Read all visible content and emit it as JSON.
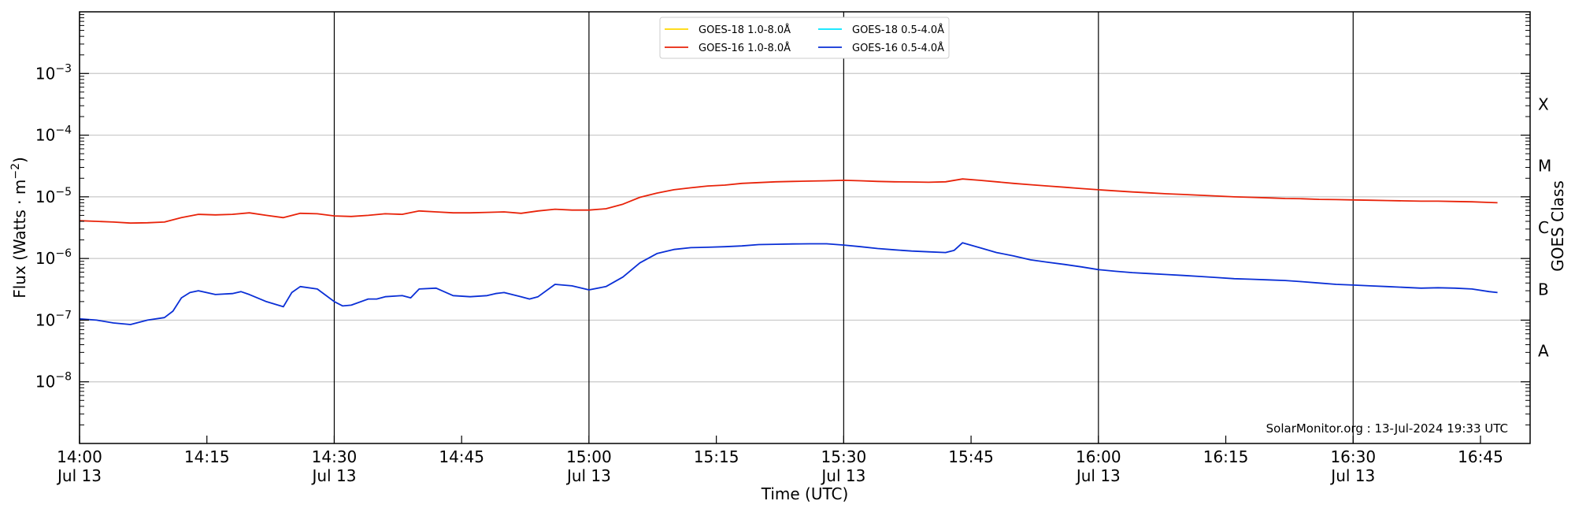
{
  "chart_data": {
    "type": "line",
    "title": "",
    "xlabel": "Time (UTC)",
    "ylabel": "Flux (Watts · m",
    "ylabel_sup": "−2",
    "ylabel_close": ")",
    "right_label": "GOES Class",
    "y_scale": "log",
    "ylim": [
      1e-09,
      0.01
    ],
    "xlim": [
      "14:00",
      "16:47"
    ],
    "grid": "horizontal at decades, vertical lines every 30 minutes",
    "legend_position": "top-center",
    "credit": "SolarMonitor.org : 13-Jul-2024 19:33 UTC",
    "y_ticks": [
      {
        "value": 0.001,
        "base": "10",
        "exp": "−3"
      },
      {
        "value": 0.0001,
        "base": "10",
        "exp": "−4"
      },
      {
        "value": 1e-05,
        "base": "10",
        "exp": "−5"
      },
      {
        "value": 1e-06,
        "base": "10",
        "exp": "−6"
      },
      {
        "value": 1e-07,
        "base": "10",
        "exp": "−7"
      },
      {
        "value": 1e-08,
        "base": "10",
        "exp": "−8"
      }
    ],
    "x_ticks": [
      {
        "time": "14:00",
        "line1": "14:00",
        "line2": "Jul 13"
      },
      {
        "time": "14:15",
        "line1": "14:15",
        "line2": ""
      },
      {
        "time": "14:30",
        "line1": "14:30",
        "line2": "Jul 13"
      },
      {
        "time": "14:45",
        "line1": "14:45",
        "line2": ""
      },
      {
        "time": "15:00",
        "line1": "15:00",
        "line2": "Jul 13"
      },
      {
        "time": "15:15",
        "line1": "15:15",
        "line2": ""
      },
      {
        "time": "15:30",
        "line1": "15:30",
        "line2": "Jul 13"
      },
      {
        "time": "15:45",
        "line1": "15:45",
        "line2": ""
      },
      {
        "time": "16:00",
        "line1": "16:00",
        "line2": "Jul 13"
      },
      {
        "time": "16:15",
        "line1": "16:15",
        "line2": ""
      },
      {
        "time": "16:30",
        "line1": "16:30",
        "line2": "Jul 13"
      },
      {
        "time": "16:45",
        "line1": "16:45",
        "line2": ""
      }
    ],
    "vertical_lines": [
      "14:00",
      "14:30",
      "15:00",
      "15:30",
      "16:00",
      "16:30"
    ],
    "goes_classes": [
      {
        "label": "X",
        "value": 0.000316
      },
      {
        "label": "M",
        "value": 3.16e-05
      },
      {
        "label": "C",
        "value": 3.16e-06
      },
      {
        "label": "B",
        "value": 3.16e-07
      },
      {
        "label": "A",
        "value": 3.16e-08
      }
    ],
    "legend": [
      {
        "label": "GOES-18 1.0-8.0Å",
        "color": "#ffd700"
      },
      {
        "label": "GOES-18 0.5-4.0Å",
        "color": "#00e5ff"
      },
      {
        "label": "GOES-16 1.0-8.0Å",
        "color": "#e8230a"
      },
      {
        "label": "GOES-16 0.5-4.0Å",
        "color": "#0a2fd6"
      }
    ],
    "series": [
      {
        "name": "GOES-16 1.0-8.0Å",
        "color": "#e8230a",
        "x": [
          "14:00",
          "14:02",
          "14:04",
          "14:06",
          "14:08",
          "14:10",
          "14:12",
          "14:14",
          "14:16",
          "14:18",
          "14:20",
          "14:22",
          "14:24",
          "14:26",
          "14:28",
          "14:30",
          "14:32",
          "14:34",
          "14:36",
          "14:38",
          "14:40",
          "14:42",
          "14:44",
          "14:46",
          "14:48",
          "14:50",
          "14:52",
          "14:54",
          "14:56",
          "14:58",
          "15:00",
          "15:02",
          "15:04",
          "15:06",
          "15:08",
          "15:10",
          "15:12",
          "15:14",
          "15:16",
          "15:18",
          "15:20",
          "15:22",
          "15:24",
          "15:26",
          "15:28",
          "15:30",
          "15:32",
          "15:34",
          "15:36",
          "15:38",
          "15:40",
          "15:42",
          "15:44",
          "15:46",
          "15:48",
          "15:50",
          "15:52",
          "15:54",
          "15:56",
          "15:58",
          "16:00",
          "16:02",
          "16:04",
          "16:06",
          "16:08",
          "16:10",
          "16:12",
          "16:14",
          "16:16",
          "16:18",
          "16:20",
          "16:22",
          "16:24",
          "16:26",
          "16:28",
          "16:30",
          "16:32",
          "16:34",
          "16:36",
          "16:38",
          "16:40",
          "16:42",
          "16:44",
          "16:46",
          "16:47"
        ],
        "values": [
          4.1e-06,
          4e-06,
          3.9e-06,
          3.75e-06,
          3.8e-06,
          3.9e-06,
          4.6e-06,
          5.2e-06,
          5.1e-06,
          5.2e-06,
          5.5e-06,
          5e-06,
          4.6e-06,
          5.4e-06,
          5.3e-06,
          4.9e-06,
          4.8e-06,
          5e-06,
          5.3e-06,
          5.2e-06,
          5.9e-06,
          5.7e-06,
          5.5e-06,
          5.5e-06,
          5.6e-06,
          5.7e-06,
          5.4e-06,
          5.9e-06,
          6.3e-06,
          6.1e-06,
          6.1e-06,
          6.4e-06,
          7.6e-06,
          9.8e-06,
          1.15e-05,
          1.3e-05,
          1.4e-05,
          1.5e-05,
          1.55e-05,
          1.65e-05,
          1.7e-05,
          1.75e-05,
          1.78e-05,
          1.8e-05,
          1.82e-05,
          1.85e-05,
          1.82e-05,
          1.78e-05,
          1.75e-05,
          1.74e-05,
          1.72e-05,
          1.75e-05,
          1.95e-05,
          1.85e-05,
          1.75e-05,
          1.65e-05,
          1.57e-05,
          1.5e-05,
          1.43e-05,
          1.36e-05,
          1.3e-05,
          1.25e-05,
          1.2e-05,
          1.16e-05,
          1.12e-05,
          1.09e-05,
          1.06e-05,
          1.03e-05,
          1e-05,
          9.8e-06,
          9.6e-06,
          9.4e-06,
          9.3e-06,
          9.1e-06,
          9e-06,
          8.9e-06,
          8.8e-06,
          8.7e-06,
          8.6e-06,
          8.5e-06,
          8.5e-06,
          8.4e-06,
          8.3e-06,
          8.1e-06,
          8e-06
        ]
      },
      {
        "name": "GOES-16 0.5-4.0Å",
        "color": "#0a2fd6",
        "x": [
          "14:00",
          "14:02",
          "14:04",
          "14:06",
          "14:08",
          "14:10",
          "14:11",
          "14:12",
          "14:13",
          "14:14",
          "14:16",
          "14:18",
          "14:19",
          "14:20",
          "14:22",
          "14:24",
          "14:25",
          "14:26",
          "14:28",
          "14:30",
          "14:31",
          "14:32",
          "14:34",
          "14:35",
          "14:36",
          "14:38",
          "14:39",
          "14:40",
          "14:42",
          "14:44",
          "14:46",
          "14:48",
          "14:49",
          "14:50",
          "14:52",
          "14:53",
          "14:54",
          "14:56",
          "14:58",
          "15:00",
          "15:02",
          "15:04",
          "15:06",
          "15:08",
          "15:10",
          "15:12",
          "15:14",
          "15:16",
          "15:18",
          "15:20",
          "15:22",
          "15:24",
          "15:26",
          "15:28",
          "15:30",
          "15:32",
          "15:34",
          "15:36",
          "15:38",
          "15:40",
          "15:42",
          "15:43",
          "15:44",
          "15:46",
          "15:48",
          "15:50",
          "15:52",
          "15:54",
          "15:56",
          "15:58",
          "16:00",
          "16:02",
          "16:04",
          "16:06",
          "16:08",
          "16:10",
          "16:12",
          "16:14",
          "16:16",
          "16:18",
          "16:20",
          "16:22",
          "16:24",
          "16:26",
          "16:28",
          "16:30",
          "16:32",
          "16:34",
          "16:36",
          "16:38",
          "16:40",
          "16:42",
          "16:44",
          "16:46",
          "16:47"
        ],
        "values": [
          1.05e-07,
          1e-07,
          9e-08,
          8.5e-08,
          1e-07,
          1.1e-07,
          1.4e-07,
          2.3e-07,
          2.8e-07,
          3e-07,
          2.6e-07,
          2.7e-07,
          2.9e-07,
          2.6e-07,
          2e-07,
          1.65e-07,
          2.8e-07,
          3.5e-07,
          3.2e-07,
          2e-07,
          1.7e-07,
          1.75e-07,
          2.2e-07,
          2.2e-07,
          2.4e-07,
          2.5e-07,
          2.3e-07,
          3.2e-07,
          3.3e-07,
          2.5e-07,
          2.4e-07,
          2.5e-07,
          2.7e-07,
          2.8e-07,
          2.4e-07,
          2.2e-07,
          2.4e-07,
          3.8e-07,
          3.6e-07,
          3.1e-07,
          3.5e-07,
          5e-07,
          8.5e-07,
          1.2e-06,
          1.4e-06,
          1.5e-06,
          1.52e-06,
          1.55e-06,
          1.6e-06,
          1.68e-06,
          1.7e-06,
          1.72e-06,
          1.73e-06,
          1.73e-06,
          1.65e-06,
          1.55e-06,
          1.45e-06,
          1.38e-06,
          1.32e-06,
          1.28e-06,
          1.25e-06,
          1.35e-06,
          1.8e-06,
          1.5e-06,
          1.25e-06,
          1.1e-06,
          9.5e-07,
          8.7e-07,
          8e-07,
          7.3e-07,
          6.6e-07,
          6.2e-07,
          5.9e-07,
          5.7e-07,
          5.5e-07,
          5.3e-07,
          5.1e-07,
          4.9e-07,
          4.7e-07,
          4.6e-07,
          4.5e-07,
          4.4e-07,
          4.2e-07,
          4e-07,
          3.8e-07,
          3.7e-07,
          3.6e-07,
          3.5e-07,
          3.4e-07,
          3.3e-07,
          3.35e-07,
          3.3e-07,
          3.2e-07,
          2.9e-07,
          2.8e-07
        ]
      }
    ]
  }
}
